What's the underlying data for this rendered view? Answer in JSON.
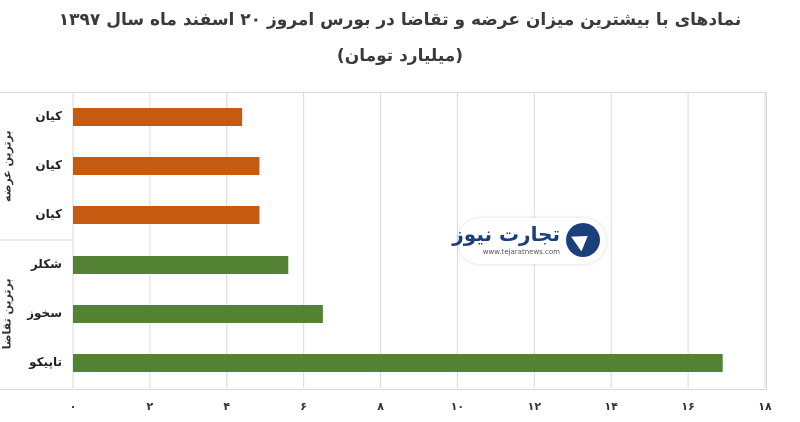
{
  "chart_data": {
    "type": "bar",
    "orientation": "horizontal",
    "title": "نمادهای با بیشترین میزان عرضه و تقاضا در بورس امروز ۲۰ اسفند ماه سال ۱۳۹۷",
    "subtitle": "(میلیارد تومان)",
    "xlim": [
      0,
      18
    ],
    "x_ticks": [
      "۰",
      "۲",
      "۴",
      "۶",
      "۸",
      "۱۰",
      "۱۲",
      "۱۴",
      "۱۶",
      "۱۸"
    ],
    "x_tick_values": [
      0,
      2,
      4,
      6,
      8,
      10,
      12,
      14,
      16,
      18
    ],
    "grid": "vertical",
    "groups": [
      {
        "label": "برترین عرضه",
        "color": "#c55a11",
        "categories": [
          "کیان",
          "کیان",
          "کیان"
        ],
        "values": [
          4.4,
          4.85,
          4.85
        ]
      },
      {
        "label": "برترین تقاضا",
        "color": "#548235",
        "categories": [
          "شکلر",
          "سخوز",
          "تاپیکو"
        ],
        "values": [
          5.6,
          6.5,
          16.9
        ]
      }
    ]
  },
  "watermark": {
    "name": "تجارت نیوز",
    "url": "www.tejaratnews.com"
  }
}
